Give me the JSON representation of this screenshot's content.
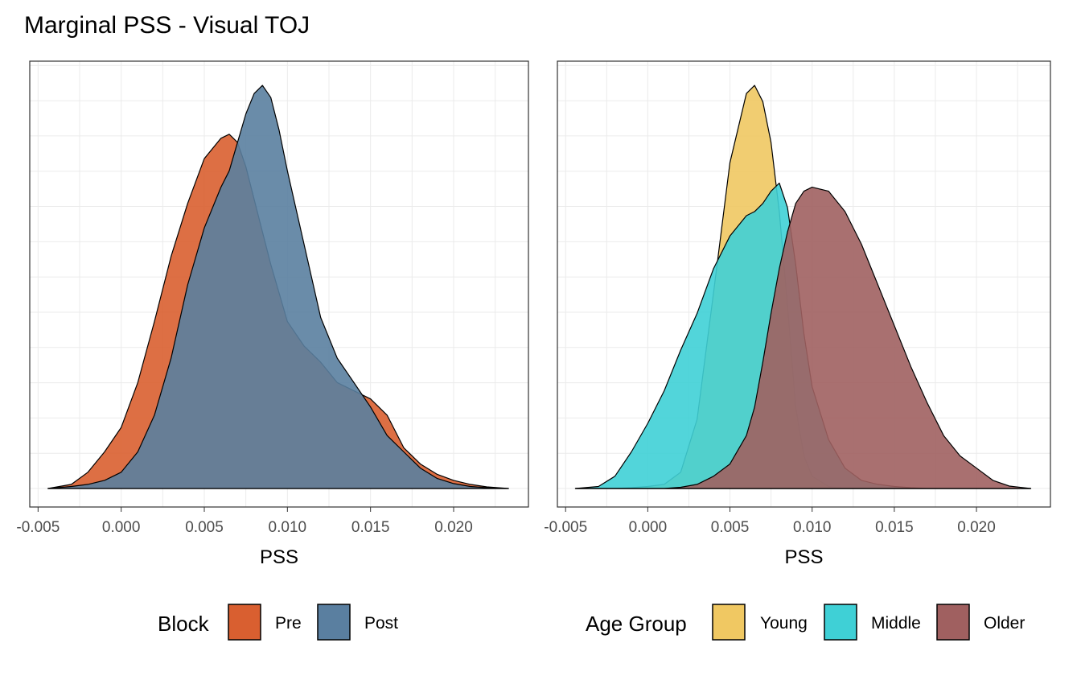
{
  "figure": {
    "title": "Marginal PSS - Visual TOJ"
  },
  "chart_data": [
    {
      "type": "area",
      "subtype": "density",
      "xlabel": "PSS",
      "ylabel": "",
      "xlim": [
        -0.0055,
        0.0245
      ],
      "x_ticks": [
        -0.005,
        0.0,
        0.005,
        0.01,
        0.015,
        0.02
      ],
      "x_tick_labels": [
        "-0.005",
        "0.000",
        "0.005",
        "0.010",
        "0.015",
        "0.020"
      ],
      "y_tick_labels_shown": false,
      "grid": true,
      "legend": {
        "title": "Block",
        "position": "bottom"
      },
      "x": [
        -0.0044,
        -0.003,
        -0.002,
        -0.001,
        0.0,
        0.001,
        0.002,
        0.003,
        0.004,
        0.005,
        0.006,
        0.0065,
        0.007,
        0.0075,
        0.008,
        0.0085,
        0.009,
        0.0095,
        0.01,
        0.011,
        0.012,
        0.013,
        0.014,
        0.015,
        0.016,
        0.017,
        0.018,
        0.019,
        0.02,
        0.021,
        0.022,
        0.0233
      ],
      "series": [
        {
          "name": "Pre",
          "color": "#D95F30",
          "values": [
            0.0,
            0.01,
            0.04,
            0.09,
            0.15,
            0.26,
            0.41,
            0.57,
            0.7,
            0.81,
            0.86,
            0.87,
            0.85,
            0.79,
            0.71,
            0.63,
            0.55,
            0.48,
            0.41,
            0.35,
            0.31,
            0.26,
            0.24,
            0.22,
            0.18,
            0.1,
            0.06,
            0.035,
            0.02,
            0.01,
            0.004,
            0.0
          ]
        },
        {
          "name": "Post",
          "color": "#5A7FA0",
          "values": [
            0.0,
            0.005,
            0.01,
            0.02,
            0.04,
            0.09,
            0.18,
            0.32,
            0.5,
            0.64,
            0.74,
            0.78,
            0.85,
            0.92,
            0.97,
            0.99,
            0.96,
            0.88,
            0.78,
            0.6,
            0.42,
            0.32,
            0.26,
            0.2,
            0.13,
            0.09,
            0.05,
            0.025,
            0.012,
            0.005,
            0.002,
            0.0
          ]
        }
      ]
    },
    {
      "type": "area",
      "subtype": "density",
      "xlabel": "PSS",
      "ylabel": "",
      "xlim": [
        -0.0055,
        0.0245
      ],
      "x_ticks": [
        -0.005,
        0.0,
        0.005,
        0.01,
        0.015,
        0.02
      ],
      "x_tick_labels": [
        "-0.005",
        "0.000",
        "0.005",
        "0.010",
        "0.015",
        "0.020"
      ],
      "y_tick_labels_shown": false,
      "grid": true,
      "legend": {
        "title": "Age Group",
        "position": "bottom"
      },
      "x": [
        -0.0044,
        -0.003,
        -0.002,
        -0.001,
        0.0,
        0.001,
        0.002,
        0.003,
        0.004,
        0.005,
        0.006,
        0.0065,
        0.007,
        0.0075,
        0.008,
        0.0085,
        0.009,
        0.0095,
        0.01,
        0.011,
        0.012,
        0.013,
        0.014,
        0.015,
        0.016,
        0.017,
        0.018,
        0.019,
        0.02,
        0.021,
        0.022,
        0.0233
      ],
      "series": [
        {
          "name": "Young",
          "color": "#F0C862",
          "values": [
            0.0,
            0.0,
            0.0,
            0.002,
            0.005,
            0.01,
            0.04,
            0.17,
            0.48,
            0.8,
            0.97,
            0.99,
            0.95,
            0.85,
            0.68,
            0.45,
            0.2,
            0.08,
            0.03,
            0.005,
            0.0,
            0.0,
            0.0,
            0.0,
            0.0,
            0.0,
            0.0,
            0.0,
            0.0,
            0.0,
            0.0,
            0.0
          ]
        },
        {
          "name": "Middle",
          "color": "#3FD0D6",
          "values": [
            0.0,
            0.005,
            0.03,
            0.09,
            0.16,
            0.24,
            0.34,
            0.43,
            0.54,
            0.62,
            0.67,
            0.68,
            0.7,
            0.73,
            0.75,
            0.69,
            0.55,
            0.38,
            0.25,
            0.12,
            0.05,
            0.02,
            0.01,
            0.005,
            0.002,
            0.0,
            0.0,
            0.0,
            0.0,
            0.0,
            0.0,
            0.0
          ]
        },
        {
          "name": "Older",
          "color": "#A06060",
          "values": [
            0.0,
            0.0,
            0.0,
            0.0,
            0.0,
            0.0,
            0.003,
            0.01,
            0.03,
            0.06,
            0.13,
            0.2,
            0.31,
            0.43,
            0.54,
            0.63,
            0.7,
            0.73,
            0.74,
            0.73,
            0.68,
            0.6,
            0.5,
            0.4,
            0.3,
            0.21,
            0.13,
            0.08,
            0.05,
            0.02,
            0.006,
            0.0
          ]
        }
      ]
    }
  ]
}
